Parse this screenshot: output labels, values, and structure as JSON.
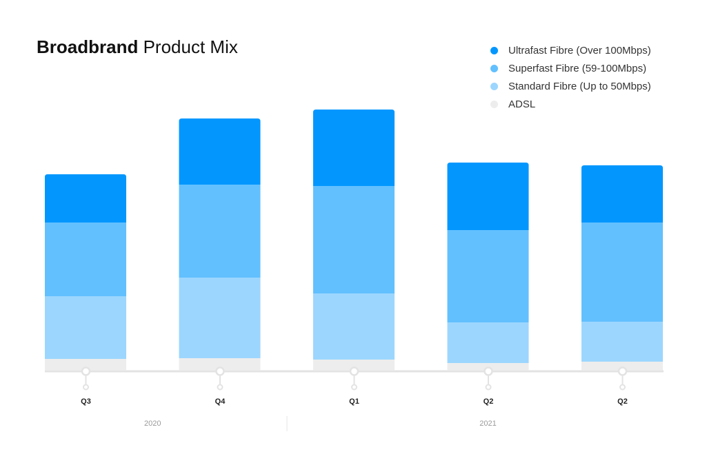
{
  "title": {
    "bold": "Broadbrand",
    "light": "Product Mix"
  },
  "colors": {
    "ultrafast": "#0397fe",
    "superfast": "#62c0fe",
    "standard": "#9cd6fe",
    "adsl": "#ededed",
    "axis": "#e3e3e3"
  },
  "chart_data": {
    "type": "bar",
    "stacked": true,
    "title": "Broadbrand Product Mix",
    "categories": [
      "Q3",
      "Q4",
      "Q1",
      "Q2",
      "Q2"
    ],
    "groups": [
      {
        "label": "2020",
        "span": [
          0,
          1
        ]
      },
      {
        "label": "2021",
        "span": [
          2,
          4
        ]
      }
    ],
    "series": [
      {
        "name": "ADSL",
        "color": "#ededed",
        "values": [
          17,
          18,
          16,
          11,
          13
        ]
      },
      {
        "name": "Standard Fibre (Up to 50Mbps)",
        "color": "#9cd6fe",
        "values": [
          91,
          117,
          96,
          59,
          58
        ]
      },
      {
        "name": "Superfast Fibre (59-100Mbps)",
        "color": "#62c0fe",
        "values": [
          107,
          135,
          156,
          134,
          144
        ]
      },
      {
        "name": "Ultrafast Fibre (Over 100Mbps)",
        "color": "#0397fe",
        "values": [
          70,
          96,
          111,
          98,
          83
        ]
      }
    ],
    "legend": [
      "Ultrafast Fibre (Over 100Mbps)",
      "Superfast Fibre (59-100Mbps)",
      "Standard Fibre (Up to 50Mbps)",
      "ADSL"
    ],
    "legend_position": "top-right",
    "xlabel": "",
    "ylabel": "",
    "y_axis_shown": false,
    "grid": false
  }
}
